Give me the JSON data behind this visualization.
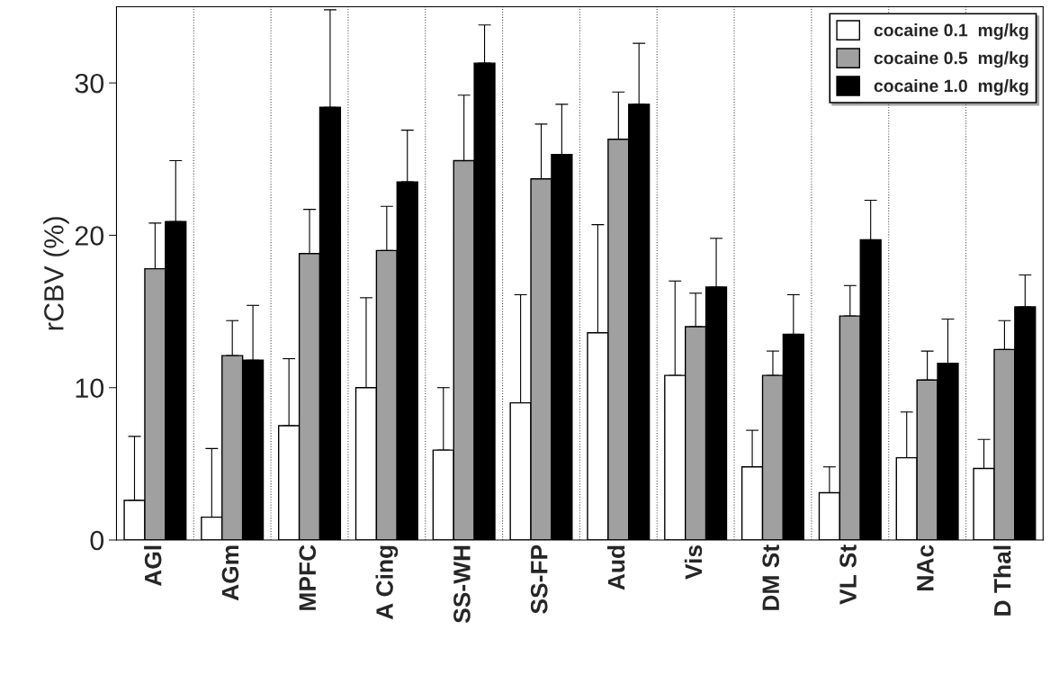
{
  "chart_data": {
    "type": "bar",
    "ylabel": "rCBV (%)",
    "categories": [
      "AGl",
      "AGm",
      "MPFC",
      "A Cing",
      "SS-WH",
      "SS-FP",
      "Aud",
      "Vis",
      "DM St",
      "VL St",
      "NAc",
      "D Thal"
    ],
    "series": [
      {
        "name": "cocaine 0.1  mg/kg",
        "color": "#ffffff",
        "values": [
          2.6,
          1.5,
          7.5,
          10.0,
          5.9,
          9.0,
          13.6,
          10.8,
          4.8,
          3.1,
          5.4,
          4.7
        ],
        "errors": [
          [
            2.6,
            6.8
          ],
          [
            1.5,
            6.0
          ],
          [
            7.5,
            11.9
          ],
          [
            10.0,
            15.9
          ],
          [
            5.9,
            10.0
          ],
          [
            9.0,
            16.1
          ],
          [
            13.6,
            20.7
          ],
          [
            10.8,
            17.0
          ],
          [
            4.8,
            7.2
          ],
          [
            3.1,
            4.8
          ],
          [
            5.4,
            8.4
          ],
          [
            4.7,
            6.6
          ]
        ]
      },
      {
        "name": "cocaine 0.5  mg/kg",
        "color": "#a0a0a0",
        "values": [
          17.8,
          12.1,
          18.8,
          19.0,
          24.9,
          23.7,
          26.3,
          14.0,
          10.8,
          14.7,
          10.5,
          12.5
        ],
        "errors": [
          [
            17.8,
            20.8
          ],
          [
            12.1,
            14.4
          ],
          [
            18.8,
            21.7
          ],
          [
            19.0,
            21.9
          ],
          [
            24.9,
            29.2
          ],
          [
            23.7,
            27.3
          ],
          [
            26.3,
            29.4
          ],
          [
            14.0,
            16.2
          ],
          [
            10.8,
            12.4
          ],
          [
            14.7,
            16.7
          ],
          [
            10.5,
            12.4
          ],
          [
            12.5,
            14.4
          ]
        ]
      },
      {
        "name": "cocaine 1.0  mg/kg",
        "color": "#000000",
        "values": [
          20.9,
          11.8,
          28.4,
          23.5,
          31.3,
          25.3,
          28.6,
          16.6,
          13.5,
          19.7,
          11.6,
          15.3
        ],
        "errors": [
          [
            20.9,
            24.9
          ],
          [
            11.8,
            15.4
          ],
          [
            28.4,
            34.8
          ],
          [
            23.5,
            26.9
          ],
          [
            31.3,
            33.8
          ],
          [
            25.3,
            28.6
          ],
          [
            28.6,
            32.6
          ],
          [
            16.6,
            19.8
          ],
          [
            13.5,
            16.1
          ],
          [
            19.7,
            22.3
          ],
          [
            11.6,
            14.5
          ],
          [
            15.3,
            17.4
          ]
        ]
      }
    ],
    "ylim": [
      0,
      35
    ],
    "yticks": [
      0,
      10,
      20,
      30
    ],
    "grid": "x",
    "legend": "top right"
  }
}
